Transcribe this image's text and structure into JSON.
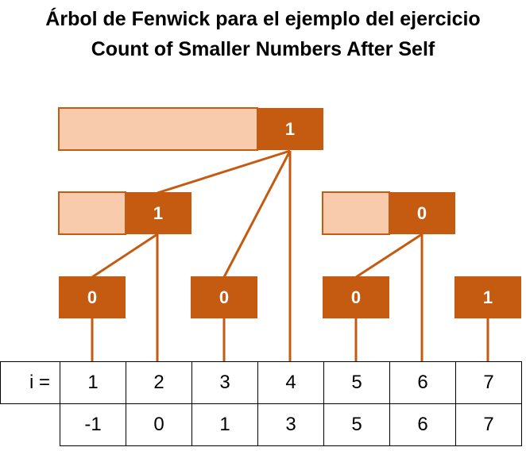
{
  "title": {
    "line1": "Árbol de Fenwick para el ejemplo del ejercicio",
    "line2": "Count of Smaller Numbers After Self"
  },
  "colors": {
    "dark": "#C55A11",
    "light": "#F8CBAD",
    "node_text": "#FFFFFF"
  },
  "tree": {
    "nodes": [
      {
        "id": "n8",
        "value": "1"
      },
      {
        "id": "n2",
        "value": "1"
      },
      {
        "id": "n6",
        "value": "0"
      },
      {
        "id": "n1",
        "value": "0"
      },
      {
        "id": "n3",
        "value": "0"
      },
      {
        "id": "n5",
        "value": "0"
      },
      {
        "id": "n7",
        "value": "1"
      }
    ]
  },
  "table": {
    "row1_label": "i =",
    "row1": [
      "1",
      "2",
      "3",
      "4",
      "5",
      "6",
      "7"
    ],
    "row2": [
      "-1",
      "0",
      "1",
      "3",
      "5",
      "6",
      "7"
    ]
  }
}
